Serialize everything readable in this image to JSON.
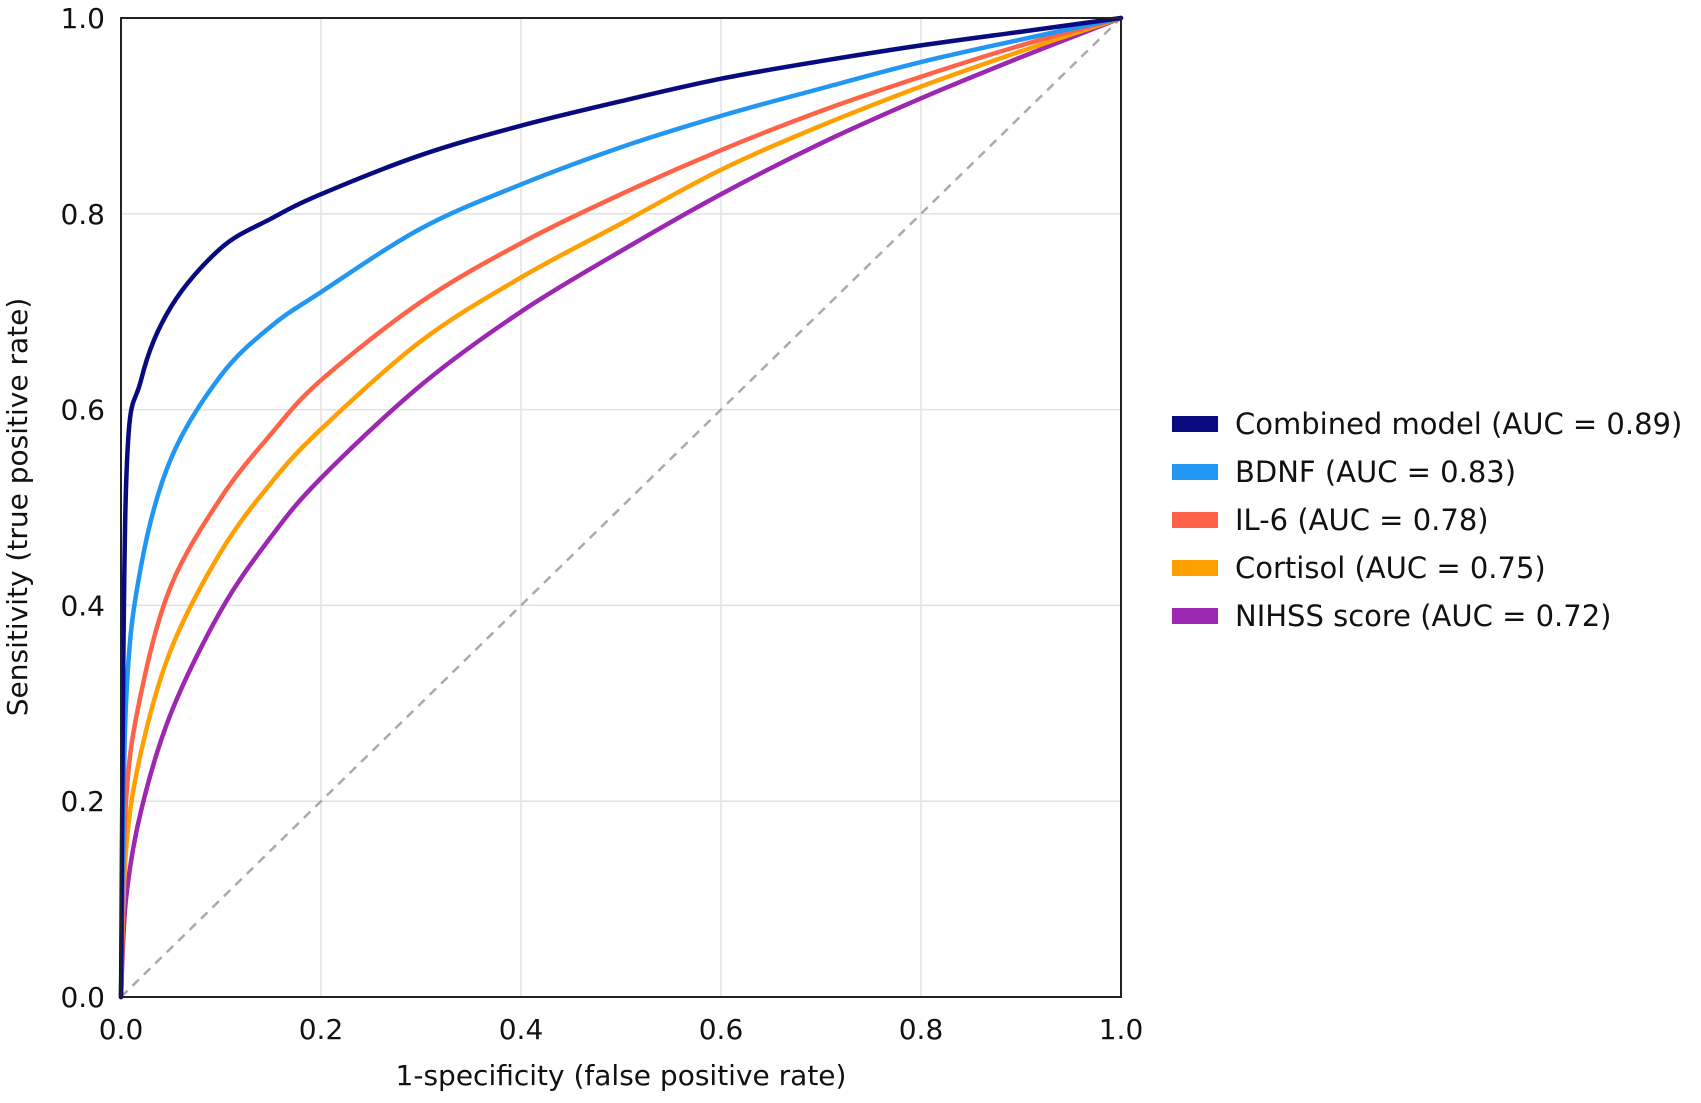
{
  "chart_data": {
    "type": "line",
    "title": "",
    "xlabel": "1-specificity (false positive rate)",
    "ylabel": "Sensitivity (true positive rate)",
    "xlim": [
      0,
      1
    ],
    "ylim": [
      0,
      1
    ],
    "xticks": [
      "0.0",
      "0.2",
      "0.4",
      "0.6",
      "0.8",
      "1.0"
    ],
    "yticks": [
      "0.0",
      "0.2",
      "0.4",
      "0.6",
      "0.8",
      "1.0"
    ],
    "grid": true,
    "legend_position": "right",
    "reference_line": {
      "style": "dashed",
      "color": "#aaaaaa",
      "x": [
        0,
        1
      ],
      "y": [
        0,
        1
      ]
    },
    "x": [
      0,
      0.005,
      0.02,
      0.05,
      0.1,
      0.15,
      0.2,
      0.3,
      0.4,
      0.5,
      0.6,
      0.7,
      0.8,
      0.9,
      1.0
    ],
    "series": [
      {
        "name": "Combined model (AUC = 0.89)",
        "color": "#0a0a80",
        "values": [
          0,
          0.52,
          0.63,
          0.705,
          0.765,
          0.795,
          0.82,
          0.86,
          0.89,
          0.915,
          0.938,
          0.956,
          0.972,
          0.986,
          1.0
        ]
      },
      {
        "name": "BDNF (AUC = 0.83)",
        "color": "#2196f3",
        "values": [
          0,
          0.3,
          0.44,
          0.55,
          0.635,
          0.685,
          0.72,
          0.785,
          0.83,
          0.868,
          0.9,
          0.928,
          0.955,
          0.978,
          1.0
        ]
      },
      {
        "name": "IL-6 (AUC = 0.78)",
        "color": "#ff6347",
        "values": [
          0,
          0.2,
          0.31,
          0.42,
          0.51,
          0.575,
          0.63,
          0.71,
          0.77,
          0.82,
          0.865,
          0.905,
          0.94,
          0.972,
          1.0
        ]
      },
      {
        "name": "Cortisol (AUC = 0.75)",
        "color": "#ffa000",
        "values": [
          0,
          0.15,
          0.25,
          0.355,
          0.455,
          0.525,
          0.58,
          0.67,
          0.735,
          0.79,
          0.845,
          0.89,
          0.93,
          0.966,
          1.0
        ]
      },
      {
        "name": "NIHSS score (AUC = 0.72)",
        "color": "#9c27b0",
        "values": [
          0,
          0.1,
          0.19,
          0.29,
          0.395,
          0.47,
          0.53,
          0.625,
          0.7,
          0.762,
          0.82,
          0.872,
          0.918,
          0.96,
          1.0
        ]
      }
    ]
  }
}
